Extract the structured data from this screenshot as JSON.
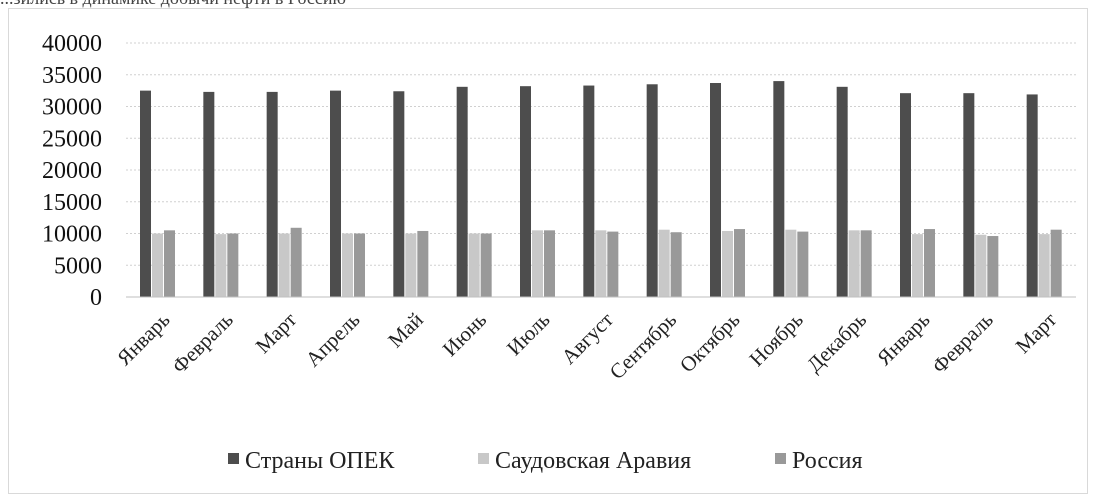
{
  "header": {
    "cut_title": "...зились в динамике добычи нефти в Россию"
  },
  "chart_data": {
    "type": "bar",
    "title": "",
    "xlabel": "",
    "ylabel": "",
    "ylim": [
      0,
      40000
    ],
    "yticks": [
      0,
      5000,
      10000,
      15000,
      20000,
      25000,
      30000,
      35000,
      40000
    ],
    "grid": true,
    "legend_position": "bottom",
    "categories": [
      "Январь",
      "Февраль",
      "Март",
      "Апрель",
      "Май",
      "Июнь",
      "Июль",
      "Август",
      "Сентябрь",
      "Октябрь",
      "Ноябрь",
      "Декабрь",
      "Январь",
      "Февраль",
      "Март"
    ],
    "series": [
      {
        "name": "Страны ОПЕК",
        "color": "#4d4d4d",
        "values": [
          32500,
          32300,
          32300,
          32500,
          32400,
          33100,
          33200,
          33300,
          33500,
          33700,
          34000,
          33100,
          32100,
          32100,
          31900
        ]
      },
      {
        "name": "Саудовская Аравия",
        "color": "#c8c8c8",
        "values": [
          10000,
          9900,
          10000,
          10000,
          10000,
          10000,
          10500,
          10500,
          10600,
          10400,
          10600,
          10500,
          9900,
          9800,
          9900
        ]
      },
      {
        "name": "Россия",
        "color": "#999999",
        "values": [
          10500,
          10000,
          10900,
          10000,
          10400,
          10000,
          10500,
          10300,
          10200,
          10700,
          10300,
          10500,
          10700,
          9600,
          10600
        ]
      }
    ]
  }
}
